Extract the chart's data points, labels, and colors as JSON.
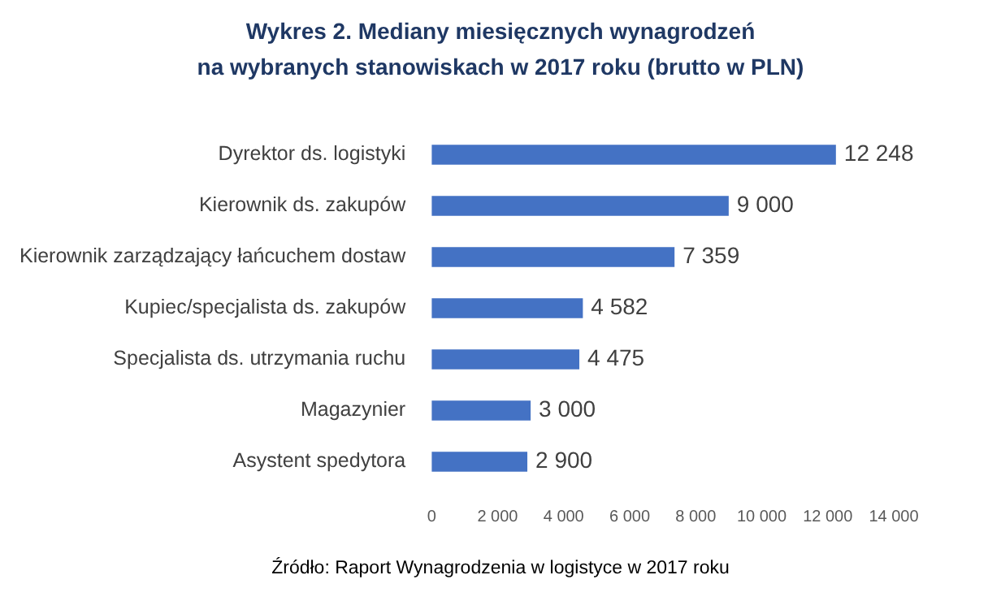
{
  "chart_data": {
    "type": "bar",
    "orientation": "horizontal",
    "title": "Wykres 2. Mediany miesięcznych wynagrodzeń\nna wybranych stanowiskach w 2017 roku (brutto w PLN)",
    "categories": [
      "Dyrektor ds. logistyki",
      "Kierownik ds. zakupów",
      "Kierownik zarządzający łańcuchem dostaw",
      "Kupiec/specjalista ds. zakupów",
      "Specjalista ds. utrzymania ruchu",
      "Magazynier",
      "Asystent spedytora"
    ],
    "values": [
      12248,
      9000,
      7359,
      4582,
      4475,
      3000,
      2900
    ],
    "value_labels": [
      "12 248",
      "9 000",
      "7 359",
      "4 582",
      "4 475",
      "3 000",
      "2 900"
    ],
    "color": "#4472c4",
    "xlim": [
      0,
      14000
    ],
    "xticks": [
      0,
      {
        "value": 2000,
        "label": "2 000"
      },
      {
        "value": 4000,
        "label": "4 000"
      },
      {
        "value": 6000,
        "label": "6 000"
      },
      {
        "value": 8000,
        "label": "8 000"
      },
      {
        "value": 10000,
        "label": "10 000"
      },
      {
        "value": 12000,
        "label": "12 000"
      },
      {
        "value": 14000,
        "label": "14 000"
      }
    ],
    "grid": false,
    "legend": false,
    "annotations": [
      "Źródło: Raport Wynagrodzenia w logistyce w 2017 roku"
    ]
  }
}
